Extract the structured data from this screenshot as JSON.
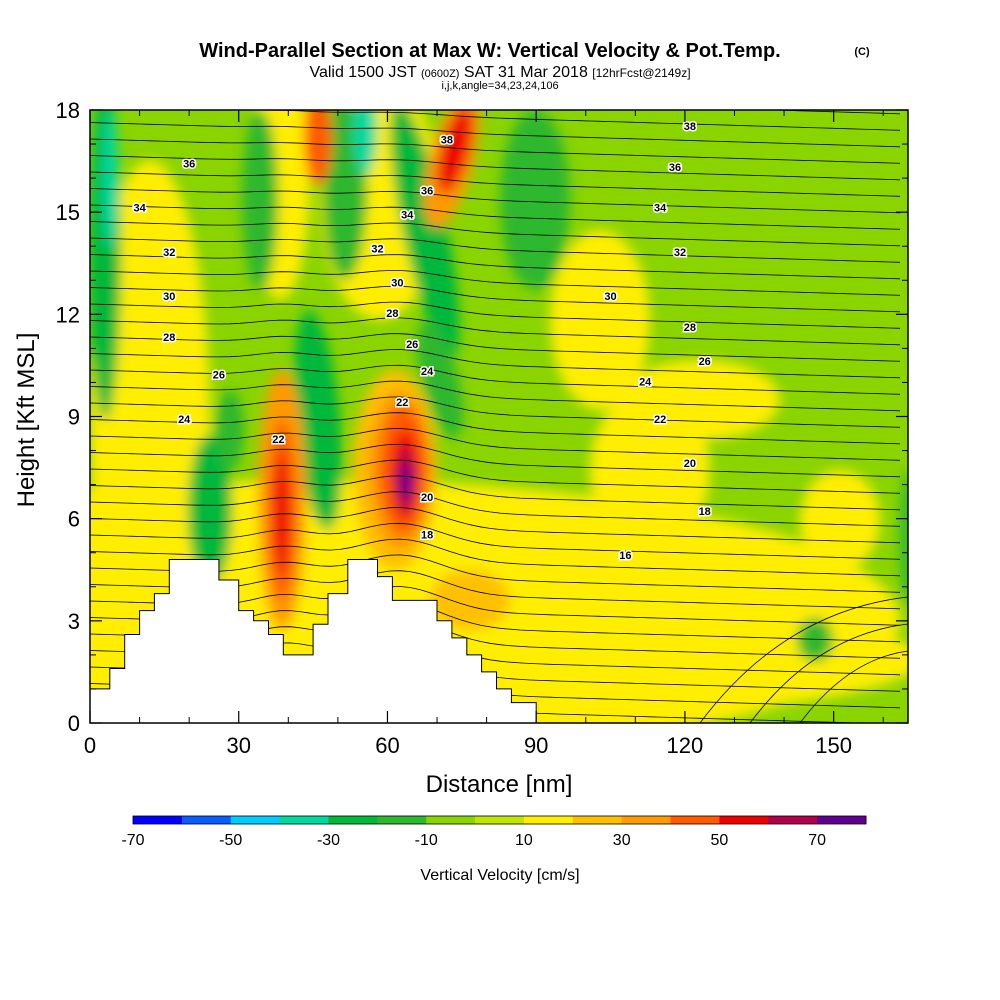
{
  "title": {
    "main": "Wind-Parallel Section at Max W: Vertical Velocity & Pot.Temp.",
    "units": "(C)",
    "subtitle_parts": [
      "Valid 1500 JST ",
      "(0600Z)",
      " SAT 31 Mar 2018 ",
      "[12hrFcst@2149z]"
    ],
    "indices": "i,j,k,angle=34,23,24,106"
  },
  "chart_data": {
    "type": "heatmap",
    "xlabel": "Distance [nm]",
    "ylabel": "Height [Kft MSL]",
    "xlim": [
      0,
      165
    ],
    "ylim": [
      0,
      18
    ],
    "x_ticks": [
      0,
      30,
      60,
      90,
      120,
      150
    ],
    "y_ticks": [
      0,
      3,
      6,
      9,
      12,
      15,
      18
    ],
    "colorbar": {
      "title": "Vertical Velocity [cm/s]",
      "tick_labels": [
        "-70",
        "-50",
        "-30",
        "-10",
        "10",
        "30",
        "50",
        "70"
      ],
      "levels": [
        -70,
        -60,
        -50,
        -40,
        -30,
        -20,
        -10,
        0,
        10,
        20,
        30,
        40,
        50,
        60,
        70
      ],
      "colors": [
        "#0000ff",
        "#0a5cff",
        "#00ccff",
        "#00d9a0",
        "#00b83a",
        "#2db82d",
        "#8ad400",
        "#bfe600",
        "#ffee00",
        "#ffc000",
        "#ff9a00",
        "#ff5a00",
        "#ee0000",
        "#b0004a",
        "#600090"
      ]
    },
    "theta_labels": [
      {
        "text": "36",
        "x": 20,
        "y": 16.4
      },
      {
        "text": "34",
        "x": 10,
        "y": 15.1
      },
      {
        "text": "32",
        "x": 16,
        "y": 13.8
      },
      {
        "text": "30",
        "x": 16,
        "y": 12.5
      },
      {
        "text": "28",
        "x": 16,
        "y": 11.3
      },
      {
        "text": "26",
        "x": 26,
        "y": 10.2
      },
      {
        "text": "24",
        "x": 19,
        "y": 8.9
      },
      {
        "text": "22",
        "x": 38,
        "y": 8.3
      },
      {
        "text": "32",
        "x": 58,
        "y": 13.9
      },
      {
        "text": "30",
        "x": 62,
        "y": 12.9
      },
      {
        "text": "28",
        "x": 61,
        "y": 12.0
      },
      {
        "text": "26",
        "x": 65,
        "y": 11.1
      },
      {
        "text": "24",
        "x": 68,
        "y": 10.3
      },
      {
        "text": "22",
        "x": 63,
        "y": 9.4
      },
      {
        "text": "34",
        "x": 64,
        "y": 14.9
      },
      {
        "text": "36",
        "x": 68,
        "y": 15.6
      },
      {
        "text": "38",
        "x": 72,
        "y": 17.1
      },
      {
        "text": "20",
        "x": 68,
        "y": 6.6
      },
      {
        "text": "18",
        "x": 68,
        "y": 5.5
      },
      {
        "text": "38",
        "x": 121,
        "y": 17.5
      },
      {
        "text": "36",
        "x": 118,
        "y": 16.3
      },
      {
        "text": "34",
        "x": 115,
        "y": 15.1
      },
      {
        "text": "32",
        "x": 119,
        "y": 13.8
      },
      {
        "text": "30",
        "x": 105,
        "y": 12.5
      },
      {
        "text": "28",
        "x": 121,
        "y": 11.6
      },
      {
        "text": "26",
        "x": 124,
        "y": 10.6
      },
      {
        "text": "24",
        "x": 112,
        "y": 10.0
      },
      {
        "text": "22",
        "x": 115,
        "y": 8.9
      },
      {
        "text": "20",
        "x": 121,
        "y": 7.6
      },
      {
        "text": "18",
        "x": 124,
        "y": 6.2
      },
      {
        "text": "16",
        "x": 108,
        "y": 4.9
      }
    ],
    "terrain_profile": [
      [
        0,
        1.0
      ],
      [
        4,
        1.0
      ],
      [
        4,
        1.6
      ],
      [
        7,
        1.6
      ],
      [
        7,
        2.6
      ],
      [
        10,
        2.6
      ],
      [
        10,
        3.3
      ],
      [
        13,
        3.3
      ],
      [
        13,
        3.8
      ],
      [
        16,
        3.8
      ],
      [
        16,
        4.8
      ],
      [
        26,
        4.8
      ],
      [
        26,
        4.2
      ],
      [
        30,
        4.2
      ],
      [
        30,
        3.3
      ],
      [
        33,
        3.3
      ],
      [
        33,
        3.0
      ],
      [
        36,
        3.0
      ],
      [
        36,
        2.6
      ],
      [
        39,
        2.6
      ],
      [
        39,
        2.0
      ],
      [
        45,
        2.0
      ],
      [
        45,
        2.9
      ],
      [
        48,
        2.9
      ],
      [
        48,
        3.8
      ],
      [
        52,
        3.8
      ],
      [
        52,
        4.8
      ],
      [
        58,
        4.8
      ],
      [
        58,
        4.3
      ],
      [
        61,
        4.3
      ],
      [
        61,
        3.6
      ],
      [
        70,
        3.6
      ],
      [
        70,
        3.0
      ],
      [
        73,
        3.0
      ],
      [
        73,
        2.5
      ],
      [
        76,
        2.5
      ],
      [
        76,
        2.0
      ],
      [
        79,
        2.0
      ],
      [
        79,
        1.5
      ],
      [
        82,
        1.5
      ],
      [
        82,
        1.0
      ],
      [
        85,
        1.0
      ],
      [
        85,
        0.6
      ],
      [
        90,
        0.6
      ],
      [
        90,
        0.0
      ]
    ]
  }
}
